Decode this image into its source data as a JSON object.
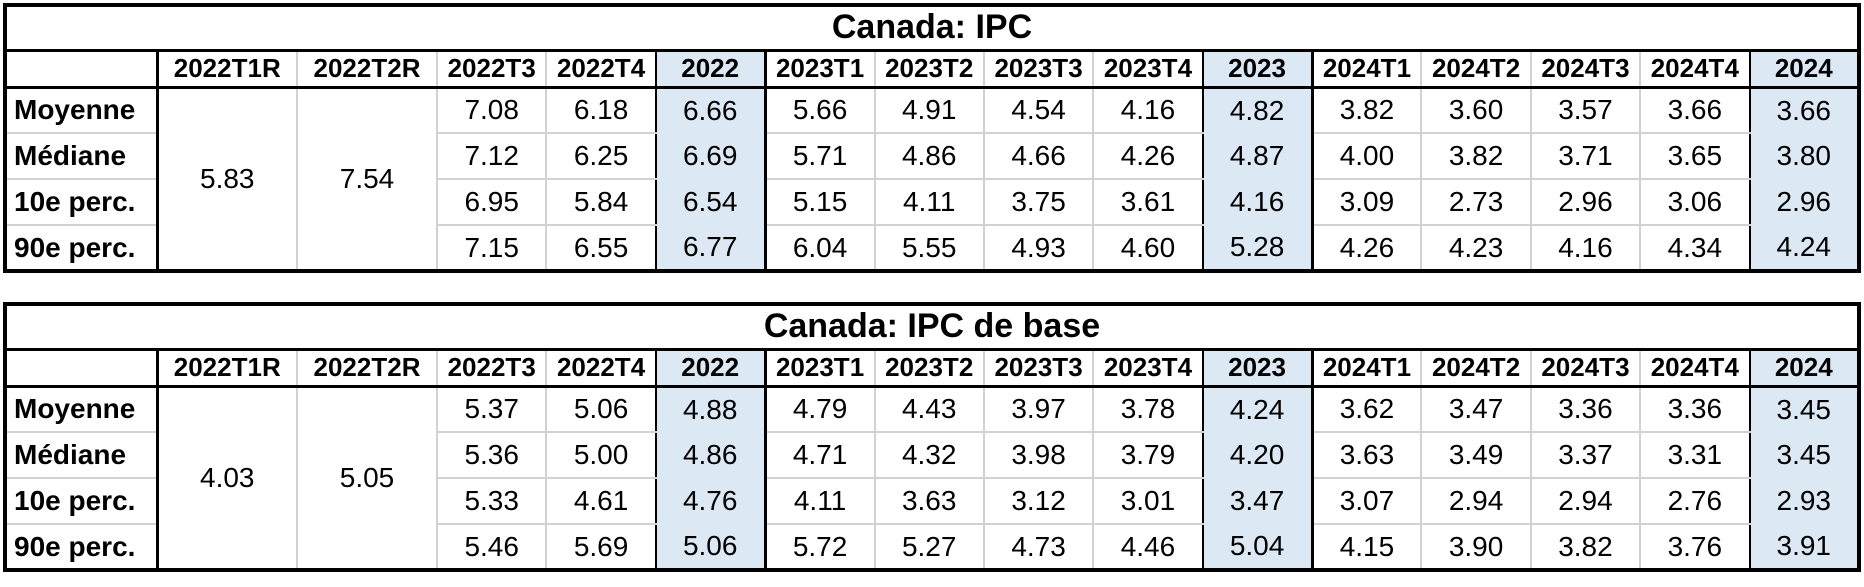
{
  "styles": {
    "highlight_color": "#dce8f4",
    "grid_color": "#d2d2d2",
    "border_color": "#000000",
    "text_color": "#000000",
    "background_color": "#ffffff"
  },
  "chart_data": [
    {
      "type": "table",
      "title": "Canada: IPC",
      "columns": [
        "",
        "2022T1R",
        "2022T2R",
        "2022T3",
        "2022T4",
        "2022",
        "2023T1",
        "2023T2",
        "2023T3",
        "2023T4",
        "2023",
        "2024T1",
        "2024T2",
        "2024T3",
        "2024T4",
        "2024"
      ],
      "highlight_columns": [
        "2022",
        "2023",
        "2024"
      ],
      "merged_cells": [
        {
          "column": "2022T1R",
          "value": "5.83",
          "rowspan": 4
        },
        {
          "column": "2022T2R",
          "value": "7.54",
          "rowspan": 4
        }
      ],
      "rows": [
        {
          "label": "Moyenne",
          "values": [
            "7.08",
            "6.18",
            "6.66",
            "5.66",
            "4.91",
            "4.54",
            "4.16",
            "4.82",
            "3.82",
            "3.60",
            "3.57",
            "3.66",
            "3.66"
          ]
        },
        {
          "label": "Médiane",
          "values": [
            "7.12",
            "6.25",
            "6.69",
            "5.71",
            "4.86",
            "4.66",
            "4.26",
            "4.87",
            "4.00",
            "3.82",
            "3.71",
            "3.65",
            "3.80"
          ]
        },
        {
          "label": "10e perc.",
          "values": [
            "6.95",
            "5.84",
            "6.54",
            "5.15",
            "4.11",
            "3.75",
            "3.61",
            "4.16",
            "3.09",
            "2.73",
            "2.96",
            "3.06",
            "2.96"
          ]
        },
        {
          "label": "90e perc.",
          "values": [
            "7.15",
            "6.55",
            "6.77",
            "6.04",
            "5.55",
            "4.93",
            "4.60",
            "5.28",
            "4.26",
            "4.23",
            "4.16",
            "4.34",
            "4.24"
          ]
        }
      ]
    },
    {
      "type": "table",
      "title": "Canada: IPC de base",
      "columns": [
        "",
        "2022T1R",
        "2022T2R",
        "2022T3",
        "2022T4",
        "2022",
        "2023T1",
        "2023T2",
        "2023T3",
        "2023T4",
        "2023",
        "2024T1",
        "2024T2",
        "2024T3",
        "2024T4",
        "2024"
      ],
      "highlight_columns": [
        "2022",
        "2023",
        "2024"
      ],
      "merged_cells": [
        {
          "column": "2022T1R",
          "value": "4.03",
          "rowspan": 4
        },
        {
          "column": "2022T2R",
          "value": "5.05",
          "rowspan": 4
        }
      ],
      "rows": [
        {
          "label": "Moyenne",
          "values": [
            "5.37",
            "5.06",
            "4.88",
            "4.79",
            "4.43",
            "3.97",
            "3.78",
            "4.24",
            "3.62",
            "3.47",
            "3.36",
            "3.36",
            "3.45"
          ]
        },
        {
          "label": "Médiane",
          "values": [
            "5.36",
            "5.00",
            "4.86",
            "4.71",
            "4.32",
            "3.98",
            "3.79",
            "4.20",
            "3.63",
            "3.49",
            "3.37",
            "3.31",
            "3.45"
          ]
        },
        {
          "label": "10e perc.",
          "values": [
            "5.33",
            "4.61",
            "4.76",
            "4.11",
            "3.63",
            "3.12",
            "3.01",
            "3.47",
            "3.07",
            "2.94",
            "2.94",
            "2.76",
            "2.93"
          ]
        },
        {
          "label": "90e perc.",
          "values": [
            "5.46",
            "5.69",
            "5.06",
            "5.72",
            "5.27",
            "4.73",
            "4.46",
            "5.04",
            "4.15",
            "3.90",
            "3.82",
            "3.76",
            "3.91"
          ]
        }
      ]
    }
  ]
}
